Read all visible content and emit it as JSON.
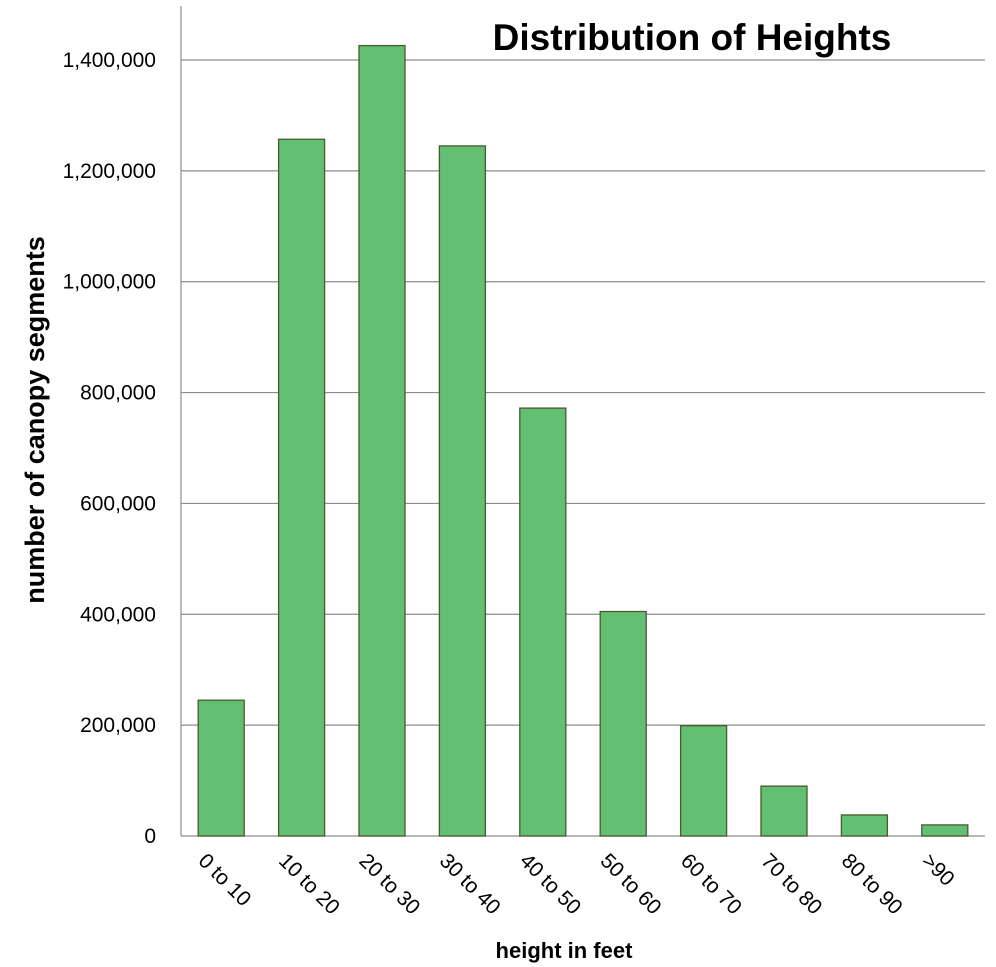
{
  "chart_data": {
    "type": "bar",
    "title": "Distribution of Heights",
    "xlabel": "height in feet",
    "ylabel": "number of canopy segments",
    "categories": [
      "0 to 10",
      "10 to 20",
      "20 to 30",
      "30 to 40",
      "40 to 50",
      "50 to 60",
      "60 to 70",
      "70 to 80",
      "80 to 90",
      ">90"
    ],
    "values": [
      245000,
      1257000,
      1426000,
      1245000,
      772000,
      405000,
      199000,
      90000,
      38000,
      20000
    ],
    "ylim": [
      0,
      1400000
    ],
    "yticks": [
      "0",
      "200,000",
      "400,000",
      "600,000",
      "800,000",
      "1,000,000",
      "1,200,000",
      "1,400,000"
    ],
    "grid": true,
    "legend": "none",
    "colors": {
      "bar_fill": "#62bf74",
      "bar_stroke": "#4a5a2a",
      "grid": "#8c8c8c",
      "axis": "#8c8c8c"
    }
  }
}
